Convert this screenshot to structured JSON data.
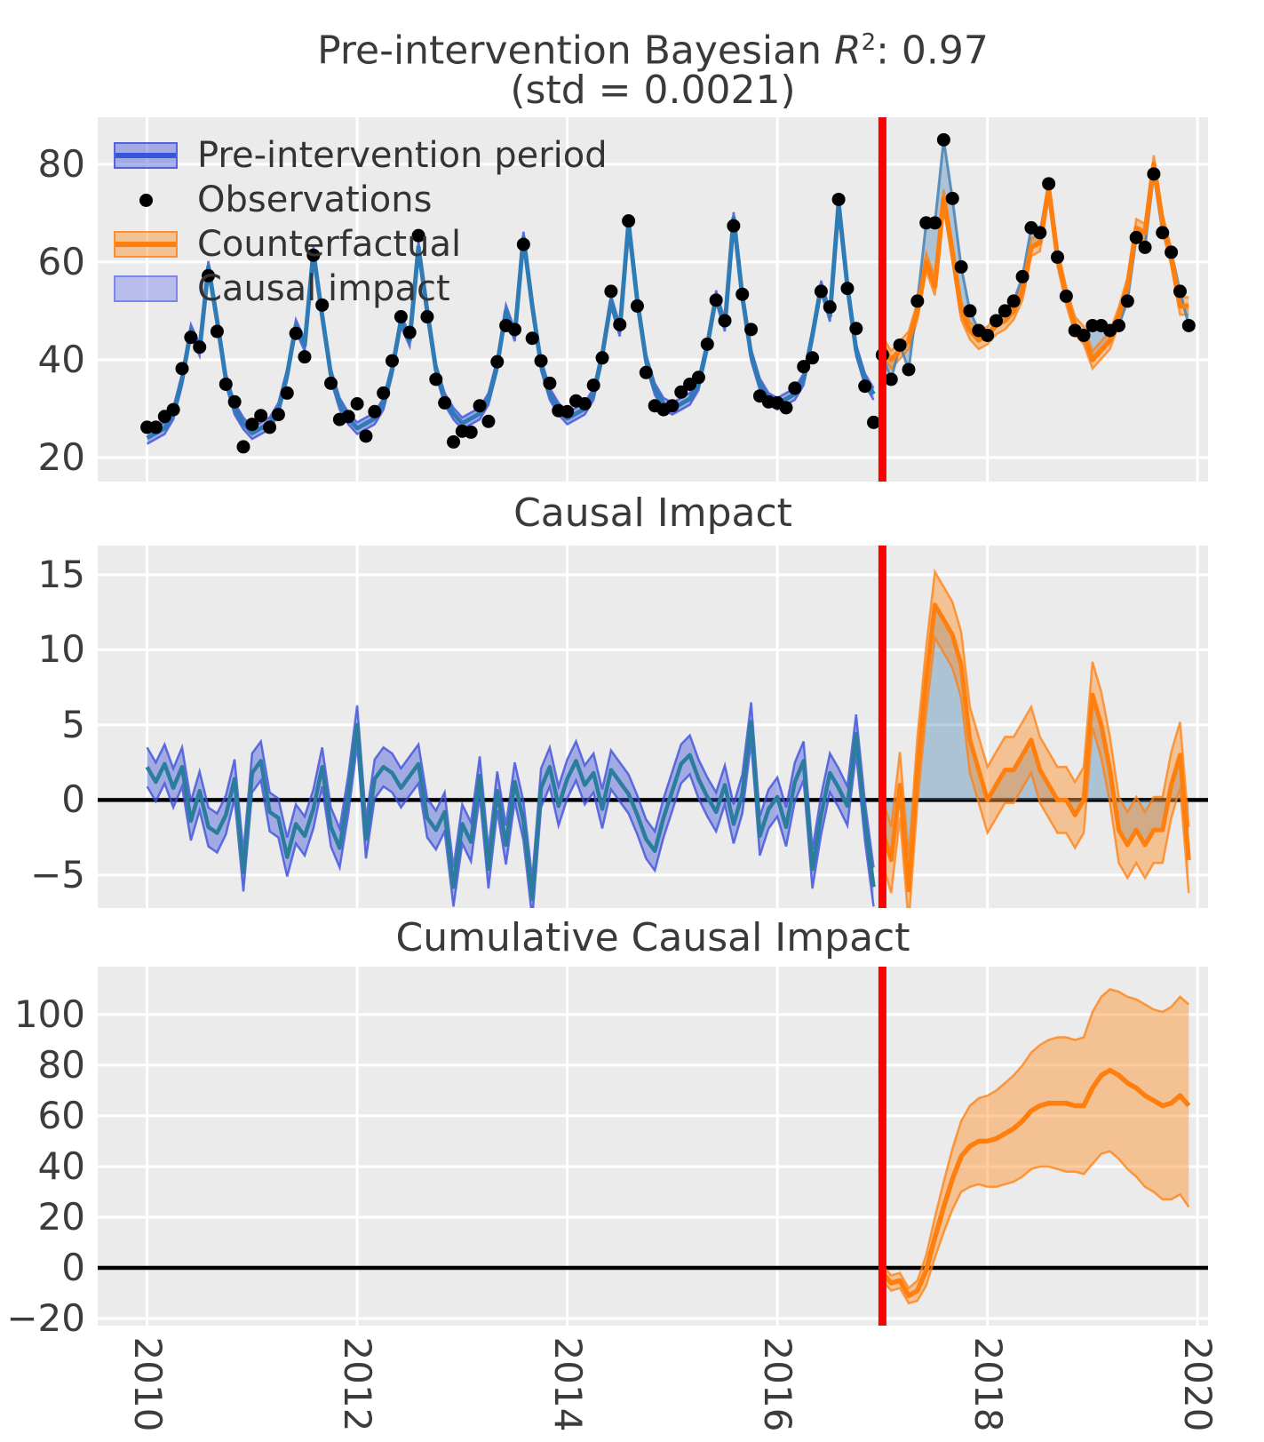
{
  "titles": {
    "top_prefix": "Pre-intervention Bayesian ",
    "top_r": "R",
    "top_exp": "2",
    "top_suffix": ": 0.97",
    "top_line2": "(std = 0.0021)",
    "middle": "Causal Impact",
    "bottom": "Cumulative Causal Impact"
  },
  "legend": {
    "items": [
      {
        "label": "Pre-intervention period",
        "swatch": "blue-band"
      },
      {
        "label": "Observations",
        "swatch": "dot"
      },
      {
        "label": "Counterfactual",
        "swatch": "orange-band"
      },
      {
        "label": "Causal impact",
        "swatch": "lavender-patch"
      }
    ]
  },
  "axes": {
    "xticks": [
      2010,
      2012,
      2014,
      2016,
      2018,
      2020
    ],
    "xtick_labels": [
      "2010",
      "2012",
      "2014",
      "2016",
      "2018",
      "2020"
    ],
    "intervention_x": 2017
  },
  "colors": {
    "panel_background": "#ebebeb",
    "grid": "#ffffff",
    "pre_line": "#2e7bb6",
    "pre_band_fill": "rgba(63,81,219,0.42)",
    "pre_band_edge": "rgba(63,81,219,0.80)",
    "counterfactual_line": "#ff7f0e",
    "counterfactual_band_fill": "rgba(255,141,41,0.45)",
    "counterfactual_band_edge": "rgba(255,127,14,0.75)",
    "causal_impact_fill": "rgba(70,130,180,0.38)",
    "observed_post_line": "rgba(70,130,180,0.85)",
    "impact_pre_line": "#2b7d9e",
    "observation_dot": "#000000",
    "intervention_line": "#ff0000",
    "zero_line": "#000000",
    "legend_pre_line": "#3a55d9",
    "legend_patch_fill": "rgba(110,120,235,0.40)",
    "legend_patch_edge": "rgba(110,120,235,0.80)",
    "title_text": "#3a3a3a",
    "tick_text": "#3c3c3c"
  },
  "chart_data": [
    {
      "type": "line",
      "panel": "top",
      "title": "Pre-intervention Bayesian R²: 0.97 (std = 0.0021)",
      "x_start": 2010,
      "frequency": "monthly",
      "intervention_x": 2017,
      "xlim": [
        2009.53,
        2020.1
      ],
      "ylim": [
        15.1,
        89.6
      ],
      "yticks": [
        20,
        40,
        60,
        80
      ],
      "ytick_labels": [
        "20",
        "40",
        "60",
        "80"
      ],
      "series": {
        "model_pre_mean": [
          24,
          25,
          26,
          29,
          36,
          46,
          42,
          59,
          48,
          36,
          30,
          27,
          25,
          26,
          27,
          30,
          37,
          47,
          43,
          62,
          49,
          37,
          31,
          28,
          26,
          27,
          28,
          31,
          38,
          48,
          44,
          63,
          50,
          38,
          32,
          29,
          27,
          28,
          29,
          32,
          39,
          50,
          45,
          65,
          51,
          39,
          33,
          30,
          28,
          29,
          30,
          33,
          41,
          52,
          46,
          68,
          52,
          40,
          34,
          31,
          30,
          31,
          32,
          35,
          43,
          53,
          47,
          69,
          53,
          41,
          35,
          32,
          31,
          32,
          33,
          36,
          45,
          55,
          49,
          72,
          55,
          42,
          36,
          33
        ],
        "model_band_halfwidth": 1.2,
        "observations_pre": [
          26.2,
          26.2,
          28.4,
          29.8,
          38.2,
          44.6,
          42.6,
          57.2,
          45.8,
          35,
          31.4,
          22.2,
          26.8,
          28.6,
          26.2,
          28.8,
          33.2,
          45.4,
          40.6,
          61.4,
          51.2,
          35.2,
          27.8,
          28.4,
          31,
          24.4,
          29.4,
          33.2,
          39.8,
          48.8,
          45.6,
          65.4,
          48.8,
          36,
          31.2,
          23.2,
          25.4,
          25.2,
          30.6,
          27.4,
          39.6,
          47,
          46.2,
          63.6,
          44.4,
          39.8,
          35.2,
          29.6,
          29.4,
          31.6,
          31,
          34.8,
          40.4,
          54,
          47.2,
          68.4,
          51,
          37.4,
          30.6,
          29.8,
          30.6,
          33.4,
          35,
          36.4,
          43.2,
          52.2,
          48,
          67.4,
          53.4,
          46.2,
          32.6,
          31.4,
          31.2,
          30.2,
          34.2,
          38.6,
          40.4,
          54,
          50.8,
          72.8,
          54.6,
          46.4,
          34.6,
          27.2
        ],
        "counterfactual_mean": [
          43,
          40,
          42,
          44,
          50,
          60,
          55,
          73,
          62,
          50,
          46,
          44,
          45,
          47,
          48,
          50,
          54,
          63,
          64,
          75,
          61,
          53,
          47,
          45,
          40,
          42,
          44,
          49,
          55,
          67,
          66,
          80,
          68,
          61,
          51,
          51
        ],
        "counterfactual_band_halfwidth": 1.8,
        "observations_post": [
          41,
          36,
          43,
          38,
          52,
          68,
          68,
          85,
          73,
          59,
          50,
          46,
          45,
          48,
          50,
          52,
          57,
          67,
          66,
          76,
          61,
          53,
          46,
          45,
          47,
          47,
          46,
          47,
          52,
          65,
          63,
          78,
          66,
          62,
          54,
          47
        ]
      }
    },
    {
      "type": "line",
      "panel": "middle",
      "title": "Causal Impact",
      "x_start": 2010,
      "frequency": "monthly",
      "intervention_x": 2017,
      "xlim": [
        2009.53,
        2020.1
      ],
      "ylim": [
        -7.2,
        16.95
      ],
      "yticks": [
        -5,
        0,
        5,
        10,
        15
      ],
      "ytick_labels": [
        "−5",
        "0",
        "5",
        "10",
        "15"
      ],
      "zero_line": 0,
      "series": {
        "impact_pre": [
          2.2,
          1.2,
          2.4,
          0.8,
          2.2,
          -1.4,
          0.6,
          -1.8,
          -2.2,
          -1,
          1.4,
          -4.8,
          1.8,
          2.6,
          -0.8,
          -1.2,
          -3.8,
          -1.6,
          -2.4,
          -0.6,
          2.2,
          -1.8,
          -3.2,
          0.4,
          5,
          -2.6,
          1.4,
          2.2,
          1.8,
          0.8,
          1.6,
          2.4,
          -1.2,
          -2,
          -0.8,
          -5.8,
          -1.6,
          -2.8,
          1.6,
          -4.6,
          0.6,
          -3,
          1.2,
          -1.4,
          -6.6,
          0.8,
          2.2,
          -0.4,
          1.4,
          2.6,
          1,
          1.8,
          -0.6,
          2,
          1.2,
          0.4,
          -1,
          -2.6,
          -3.4,
          -1.2,
          0.6,
          2.4,
          3,
          1.4,
          0.2,
          -0.8,
          1,
          -1.6,
          0.4,
          5.2,
          -2.4,
          -0.6,
          0.2,
          -1.8,
          1.2,
          2.6,
          -4.6,
          -1,
          1.8,
          0.8,
          -0.4,
          4.4,
          -1.4,
          -5.8
        ],
        "impact_pre_band_halfwidth": 1.3,
        "impact_post": [
          -2,
          -4,
          1,
          -6,
          2,
          8,
          13,
          12,
          11,
          9,
          4,
          2,
          0,
          1,
          2,
          2,
          3,
          4,
          2,
          1,
          0,
          0,
          -1,
          0,
          7,
          5,
          2,
          -2,
          -3,
          -2,
          -3,
          -2,
          -2,
          1,
          3,
          -4
        ],
        "impact_post_band_halfwidth": 2.2
      }
    },
    {
      "type": "line",
      "panel": "bottom",
      "title": "Cumulative Causal Impact",
      "x_start": 2017,
      "frequency": "monthly",
      "intervention_x": 2017,
      "xlim": [
        2009.53,
        2020.1
      ],
      "ylim": [
        -22.8,
        118.9
      ],
      "yticks": [
        -20,
        0,
        20,
        40,
        60,
        80,
        100
      ],
      "ytick_labels": [
        "−20",
        "0",
        "20",
        "40",
        "60",
        "80",
        "100"
      ],
      "zero_line": 0,
      "series": {
        "cumulative_mean": [
          -2,
          -6,
          -5,
          -11,
          -9,
          -1,
          12,
          24,
          35,
          44,
          48,
          50,
          50,
          51,
          53,
          55,
          58,
          62,
          64,
          65,
          65,
          65,
          64,
          64,
          71,
          76,
          78,
          76,
          73,
          71,
          68,
          66,
          64,
          65,
          68,
          64
        ],
        "cumulative_lower": [
          -5,
          -9,
          -8,
          -14,
          -13,
          -7,
          4,
          14,
          23,
          30,
          32,
          33,
          32,
          32,
          33,
          34,
          36,
          39,
          40,
          40,
          39,
          38,
          38,
          37,
          41,
          45,
          46,
          43,
          39,
          36,
          32,
          30,
          27,
          27,
          29,
          24
        ],
        "cumulative_upper": [
          1,
          -3,
          -2,
          -8,
          -5,
          5,
          20,
          34,
          47,
          58,
          64,
          67,
          68,
          70,
          73,
          76,
          80,
          85,
          88,
          90,
          91,
          91,
          90,
          91,
          101,
          107,
          110,
          109,
          107,
          106,
          104,
          102,
          101,
          103,
          107,
          104
        ]
      }
    }
  ]
}
